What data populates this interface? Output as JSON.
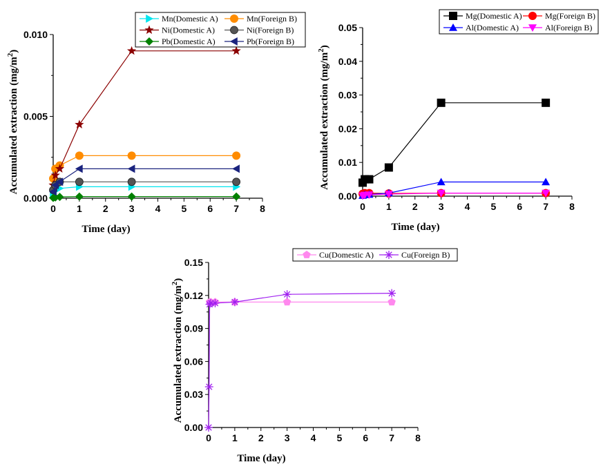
{
  "chart_data": [
    {
      "type": "line",
      "xlabel": "Time (day)",
      "ylabel": "Accumulated extraction (mg/m",
      "ylabel_sup": "2",
      "ylabel_close": ")",
      "xlim": [
        0,
        8
      ],
      "ylim": [
        0,
        0.01
      ],
      "xticks": [
        "0",
        "1",
        "2",
        "3",
        "4",
        "5",
        "6",
        "7",
        "8"
      ],
      "yticks": [
        "0.000",
        "0.005",
        "0.010"
      ],
      "ytick_values": [
        0,
        0.005,
        0.01
      ],
      "legend_position": "top-right",
      "legend_cols": 2,
      "series": [
        {
          "name": "Mn(Domestic A)",
          "color": "#00e5ee",
          "marker": "tri-right",
          "x": [
            0,
            0.083,
            0.25,
            1,
            3,
            7
          ],
          "y": [
            0.0003,
            0.0005,
            0.0006,
            0.0007,
            0.0007,
            0.0007
          ]
        },
        {
          "name": "Mn(Foreign B)",
          "color": "#ff8c00",
          "marker": "circle",
          "x": [
            0,
            0.083,
            0.25,
            1,
            3,
            7
          ],
          "y": [
            0.0012,
            0.0018,
            0.002,
            0.0026,
            0.0026,
            0.0026
          ]
        },
        {
          "name": "Ni(Domestic A)",
          "color": "#8b0000",
          "marker": "star",
          "x": [
            0,
            0.083,
            0.25,
            1,
            3,
            7
          ],
          "y": [
            0.0008,
            0.0014,
            0.0018,
            0.0045,
            0.009,
            0.009
          ]
        },
        {
          "name": "Ni(Foreign B)",
          "color": "#555555",
          "marker": "sphere",
          "x": [
            0,
            0.083,
            0.25,
            1,
            3,
            7
          ],
          "y": [
            0.0005,
            0.0008,
            0.001,
            0.001,
            0.001,
            0.001
          ]
        },
        {
          "name": "Pb(Domestic A)",
          "color": "#008000",
          "marker": "diamond",
          "x": [
            0,
            0.083,
            0.25,
            1,
            3,
            7
          ],
          "y": [
            2e-05,
            5e-05,
            8e-05,
            0.0001,
            0.0001,
            0.0001
          ]
        },
        {
          "name": "Pb(Foreign B)",
          "color": "#1a237e",
          "marker": "tri-left",
          "x": [
            0,
            0.083,
            0.25,
            1,
            3,
            7
          ],
          "y": [
            0.0004,
            0.0008,
            0.001,
            0.0018,
            0.0018,
            0.0018
          ]
        }
      ]
    },
    {
      "type": "line",
      "xlabel": "Time (day)",
      "ylabel": "Accumulated extraction (mg/m",
      "ylabel_sup": "2",
      "ylabel_close": ")",
      "xlim": [
        0,
        8
      ],
      "ylim": [
        0,
        0.05
      ],
      "xticks": [
        "0",
        "1",
        "2",
        "3",
        "4",
        "5",
        "6",
        "7",
        "8"
      ],
      "yticks": [
        "0.00",
        "0.01",
        "0.02",
        "0.03",
        "0.04",
        "0.05"
      ],
      "ytick_values": [
        0,
        0.01,
        0.02,
        0.03,
        0.04,
        0.05
      ],
      "legend_position": "top-right",
      "legend_cols": 2,
      "series": [
        {
          "name": "Mg(Domestic A)",
          "color": "#000000",
          "marker": "square",
          "x": [
            0,
            0.083,
            0.25,
            1,
            3,
            7
          ],
          "y": [
            0.004,
            0.005,
            0.005,
            0.0085,
            0.0277,
            0.0277
          ]
        },
        {
          "name": "Mg(Foreign B)",
          "color": "#ff0000",
          "marker": "circle",
          "x": [
            0,
            0.083,
            0.25,
            1,
            3,
            7
          ],
          "y": [
            0.0007,
            0.0009,
            0.0009,
            0.0008,
            0.0009,
            0.0009
          ]
        },
        {
          "name": "Al(Domestic A)",
          "color": "#0000ff",
          "marker": "tri-up",
          "x": [
            0,
            0.083,
            0.25,
            1,
            3,
            7
          ],
          "y": [
            0.0002,
            0.0004,
            0.0005,
            0.0009,
            0.0042,
            0.0042
          ]
        },
        {
          "name": "Al(Foreign B)",
          "color": "#ff00ff",
          "marker": "tri-down",
          "x": [
            0,
            0.083,
            0.25,
            1,
            3,
            7
          ],
          "y": [
            0.0001,
            0.0003,
            0.0004,
            0.0006,
            0.0009,
            0.0009
          ]
        }
      ]
    },
    {
      "type": "line",
      "xlabel": "Time (day)",
      "ylabel": "Accumulated extraction (mg/m",
      "ylabel_sup": "2",
      "ylabel_close": ")",
      "xlim": [
        0,
        8
      ],
      "ylim": [
        0,
        0.15
      ],
      "xticks": [
        "0",
        "1",
        "2",
        "3",
        "4",
        "5",
        "6",
        "7",
        "8"
      ],
      "yticks": [
        "0.00",
        "0.03",
        "0.06",
        "0.09",
        "0.12",
        "0.15"
      ],
      "ytick_values": [
        0,
        0.03,
        0.06,
        0.09,
        0.12,
        0.15
      ],
      "legend_position": "top",
      "legend_cols": 2,
      "series": [
        {
          "name": "Cu(Domestic A)",
          "color": "#ff88ee",
          "marker": "pentagon",
          "x": [
            0.04,
            0.083,
            0.25,
            1,
            3,
            7
          ],
          "y": [
            0.114,
            0.114,
            0.114,
            0.114,
            0.114,
            0.114
          ]
        },
        {
          "name": "Cu(Foreign B)",
          "color": "#a020f0",
          "marker": "asterisk",
          "x": [
            0,
            0.02,
            0.04,
            0.083,
            0.25,
            1,
            3,
            7
          ],
          "y": [
            0,
            0.037,
            0.112,
            0.113,
            0.113,
            0.114,
            0.121,
            0.122
          ]
        }
      ]
    }
  ]
}
